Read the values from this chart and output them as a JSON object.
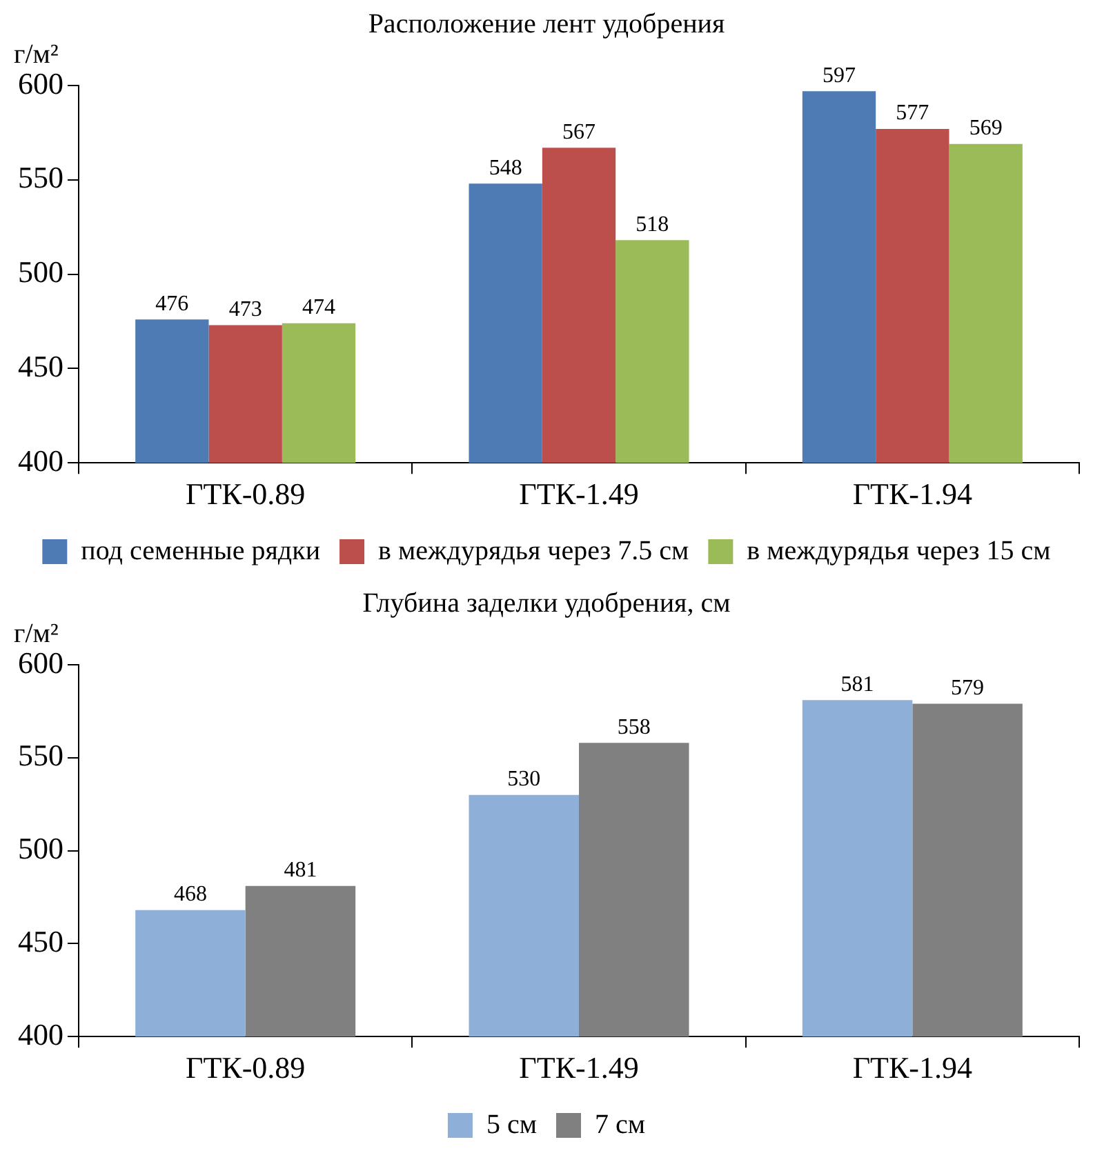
{
  "chart_data": [
    {
      "type": "bar",
      "title": "Расположение лент удобрения",
      "ylabel": "г/м²",
      "categories": [
        "ГТК-0.89",
        "ГТК-1.49",
        "ГТК-1.94"
      ],
      "series": [
        {
          "name": "под семенные рядки",
          "color": "#4f7bb5",
          "values": [
            476,
            548,
            597
          ]
        },
        {
          "name": "в междурядья через 7.5 см",
          "color": "#bc4f4b",
          "values": [
            473,
            567,
            577
          ]
        },
        {
          "name": "в междурядья через 15 см",
          "color": "#9bbb59",
          "values": [
            474,
            518,
            569
          ]
        }
      ],
      "ylim": [
        400,
        600
      ],
      "yticks": [
        400,
        450,
        500,
        550,
        600
      ],
      "data_labels": true,
      "legend": "bottom"
    },
    {
      "type": "bar",
      "title": "Глубина заделки удобрения, см",
      "ylabel": "г/м²",
      "categories": [
        "ГТК-0.89",
        "ГТК-1.49",
        "ГТК-1.94"
      ],
      "series": [
        {
          "name": "5 см",
          "color": "#8eafd8",
          "values": [
            468,
            530,
            581
          ]
        },
        {
          "name": "7 см",
          "color": "#808080",
          "values": [
            481,
            558,
            579
          ]
        }
      ],
      "ylim": [
        400,
        600
      ],
      "yticks": [
        400,
        450,
        500,
        550,
        600
      ],
      "data_labels": true,
      "legend": "bottom"
    }
  ]
}
